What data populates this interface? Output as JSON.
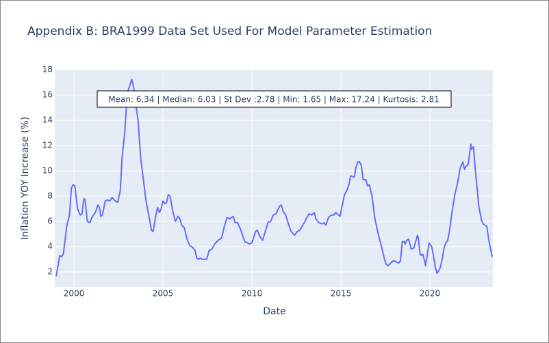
{
  "chart_data": {
    "type": "line",
    "title": "Appendix B: BRA1999 Data Set Used For Model Parameter Estimation",
    "x_label": "Date",
    "y_label": "Inflation YOY Increase (%)",
    "annotation": "Mean: 6.34 | Median: 6.03 | St Dev :2.78 | Min: 1.65 | Max: 17.24 | Kurtosis: 2.81",
    "x": [
      1999.0,
      1999.2,
      1999.3,
      1999.4,
      1999.6,
      1999.75,
      1999.85,
      1999.95,
      2000.05,
      2000.2,
      2000.35,
      2000.45,
      2000.55,
      2000.62,
      2000.75,
      2000.9,
      2001.0,
      2001.2,
      2001.35,
      2001.45,
      2001.5,
      2001.6,
      2001.75,
      2001.9,
      2002.0,
      2002.15,
      2002.25,
      2002.45,
      2002.6,
      2002.7,
      2002.85,
      2003.0,
      2003.1,
      2003.25,
      2003.35,
      2003.5,
      2003.6,
      2003.75,
      2003.9,
      2004.05,
      2004.2,
      2004.35,
      2004.45,
      2004.6,
      2004.7,
      2004.8,
      2004.9,
      2005.0,
      2005.1,
      2005.2,
      2005.3,
      2005.4,
      2005.55,
      2005.7,
      2005.85,
      2005.95,
      2006.05,
      2006.2,
      2006.35,
      2006.5,
      2006.7,
      2006.8,
      2006.9,
      2007.0,
      2007.1,
      2007.2,
      2007.45,
      2007.6,
      2007.75,
      2007.9,
      2008.1,
      2008.3,
      2008.45,
      2008.6,
      2008.75,
      2008.95,
      2009.05,
      2009.2,
      2009.35,
      2009.5,
      2009.6,
      2009.75,
      2009.85,
      2010.0,
      2010.2,
      2010.3,
      2010.45,
      2010.6,
      2010.75,
      2010.9,
      2011.05,
      2011.2,
      2011.35,
      2011.55,
      2011.65,
      2011.75,
      2011.9,
      2012.05,
      2012.2,
      2012.4,
      2012.55,
      2012.7,
      2012.9,
      2013.05,
      2013.2,
      2013.35,
      2013.5,
      2013.6,
      2013.75,
      2013.95,
      2014.05,
      2014.15,
      2014.3,
      2014.45,
      2014.6,
      2014.7,
      2014.95,
      2015.05,
      2015.2,
      2015.35,
      2015.45,
      2015.55,
      2015.75,
      2015.85,
      2015.95,
      2016.05,
      2016.15,
      2016.25,
      2016.4,
      2016.5,
      2016.6,
      2016.75,
      2016.9,
      2017.05,
      2017.15,
      2017.3,
      2017.45,
      2017.55,
      2017.65,
      2017.8,
      2017.95,
      2018.1,
      2018.25,
      2018.35,
      2018.45,
      2018.55,
      2018.6,
      2018.7,
      2018.8,
      2018.9,
      2018.95,
      2019.1,
      2019.3,
      2019.35,
      2019.45,
      2019.55,
      2019.6,
      2019.7,
      2019.75,
      2019.85,
      2019.95,
      2020.1,
      2020.2,
      2020.3,
      2020.4,
      2020.5,
      2020.6,
      2020.7,
      2020.8,
      2020.9,
      2021.0,
      2021.1,
      2021.25,
      2021.4,
      2021.55,
      2021.7,
      2021.85,
      2021.95,
      2022.05,
      2022.15,
      2022.3,
      2022.35,
      2022.45,
      2022.55,
      2022.65,
      2022.75,
      2022.9,
      2023.0,
      2023.2,
      2023.3,
      2023.4,
      2023.5
    ],
    "values": [
      1.65,
      3.3,
      3.2,
      3.4,
      5.7,
      6.5,
      8.6,
      8.9,
      8.8,
      7.0,
      6.5,
      6.6,
      7.8,
      7.7,
      6.0,
      5.9,
      6.3,
      6.7,
      7.3,
      7.0,
      6.4,
      6.5,
      7.6,
      7.7,
      7.6,
      7.9,
      7.7,
      7.5,
      8.4,
      11.0,
      13.0,
      16.2,
      16.6,
      17.24,
      16.6,
      15.0,
      14.0,
      11.0,
      9.3,
      7.6,
      6.5,
      5.3,
      5.2,
      6.5,
      7.1,
      6.7,
      7.0,
      7.6,
      7.4,
      7.5,
      8.1,
      8.0,
      6.8,
      6.0,
      6.4,
      6.2,
      5.7,
      5.5,
      4.6,
      4.1,
      3.9,
      3.7,
      3.1,
      3.0,
      3.1,
      3.0,
      3.0,
      3.7,
      3.8,
      4.2,
      4.5,
      4.7,
      5.6,
      6.3,
      6.2,
      6.4,
      5.9,
      5.9,
      5.4,
      4.8,
      4.4,
      4.3,
      4.2,
      4.3,
      5.2,
      5.3,
      4.8,
      4.5,
      5.2,
      5.9,
      6.0,
      6.5,
      6.6,
      7.2,
      7.3,
      6.8,
      6.5,
      5.8,
      5.2,
      4.9,
      5.2,
      5.3,
      5.8,
      6.2,
      6.6,
      6.5,
      6.7,
      6.2,
      5.9,
      5.8,
      5.9,
      5.7,
      6.3,
      6.5,
      6.5,
      6.7,
      6.4,
      7.1,
      8.1,
      8.5,
      8.9,
      9.6,
      9.5,
      10.3,
      10.7,
      10.7,
      10.4,
      9.3,
      9.3,
      8.8,
      8.9,
      8.0,
      6.3,
      5.3,
      4.7,
      3.9,
      3.0,
      2.6,
      2.5,
      2.7,
      2.9,
      2.8,
      2.7,
      2.9,
      4.4,
      4.4,
      4.2,
      4.5,
      4.6,
      4.1,
      3.8,
      3.9,
      4.9,
      4.7,
      3.4,
      3.3,
      3.4,
      2.9,
      2.5,
      3.3,
      4.3,
      4.0,
      3.3,
      2.4,
      1.88,
      2.1,
      2.4,
      3.1,
      3.9,
      4.3,
      4.5,
      5.2,
      6.8,
      8.1,
      9.0,
      10.2,
      10.7,
      10.1,
      10.4,
      10.5,
      12.1,
      11.7,
      11.9,
      10.1,
      8.7,
      7.2,
      6.1,
      5.8,
      5.6,
      4.6,
      3.9,
      3.2
    ],
    "color": "#636efa",
    "xlim": [
      1998.92,
      2023.54
    ],
    "xticks": [
      2000,
      2005,
      2010,
      2015,
      2020
    ],
    "ylim": [
      0.81,
      18
    ],
    "yticks": [
      2,
      4,
      6,
      8,
      10,
      12,
      14,
      16,
      18
    ],
    "grid": true
  }
}
